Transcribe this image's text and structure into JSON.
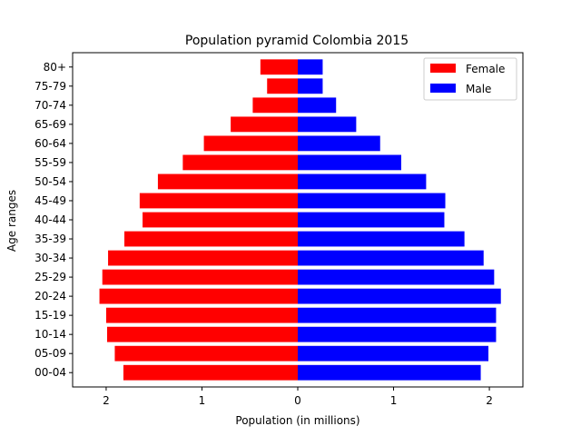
{
  "chart_data": {
    "type": "bar",
    "orientation": "horizontal",
    "title": "Population pyramid Colombia 2015",
    "xlabel": "Population (in millions)",
    "ylabel": "Age ranges",
    "categories": [
      "00-04",
      "05-09",
      "10-14",
      "15-19",
      "20-24",
      "25-29",
      "30-34",
      "35-39",
      "40-44",
      "45-49",
      "50-54",
      "55-59",
      "60-64",
      "65-69",
      "70-74",
      "75-79",
      "80+"
    ],
    "series": [
      {
        "name": "Female",
        "color": "#ff0000",
        "values": [
          1.82,
          1.91,
          1.99,
          2.0,
          2.07,
          2.04,
          1.98,
          1.81,
          1.62,
          1.65,
          1.46,
          1.2,
          0.98,
          0.7,
          0.47,
          0.32,
          0.39
        ]
      },
      {
        "name": "Male",
        "color": "#0000ff",
        "values": [
          1.91,
          1.99,
          2.07,
          2.07,
          2.12,
          2.05,
          1.94,
          1.74,
          1.53,
          1.54,
          1.34,
          1.08,
          0.86,
          0.61,
          0.4,
          0.26,
          0.26
        ]
      }
    ],
    "xlim": [
      -2.35,
      2.35
    ],
    "xticks": [
      -2,
      -1,
      0,
      1,
      2
    ],
    "xtick_labels": [
      "2",
      "1",
      "0",
      "1",
      "2"
    ],
    "grid": false,
    "legend_position": "top-right"
  }
}
